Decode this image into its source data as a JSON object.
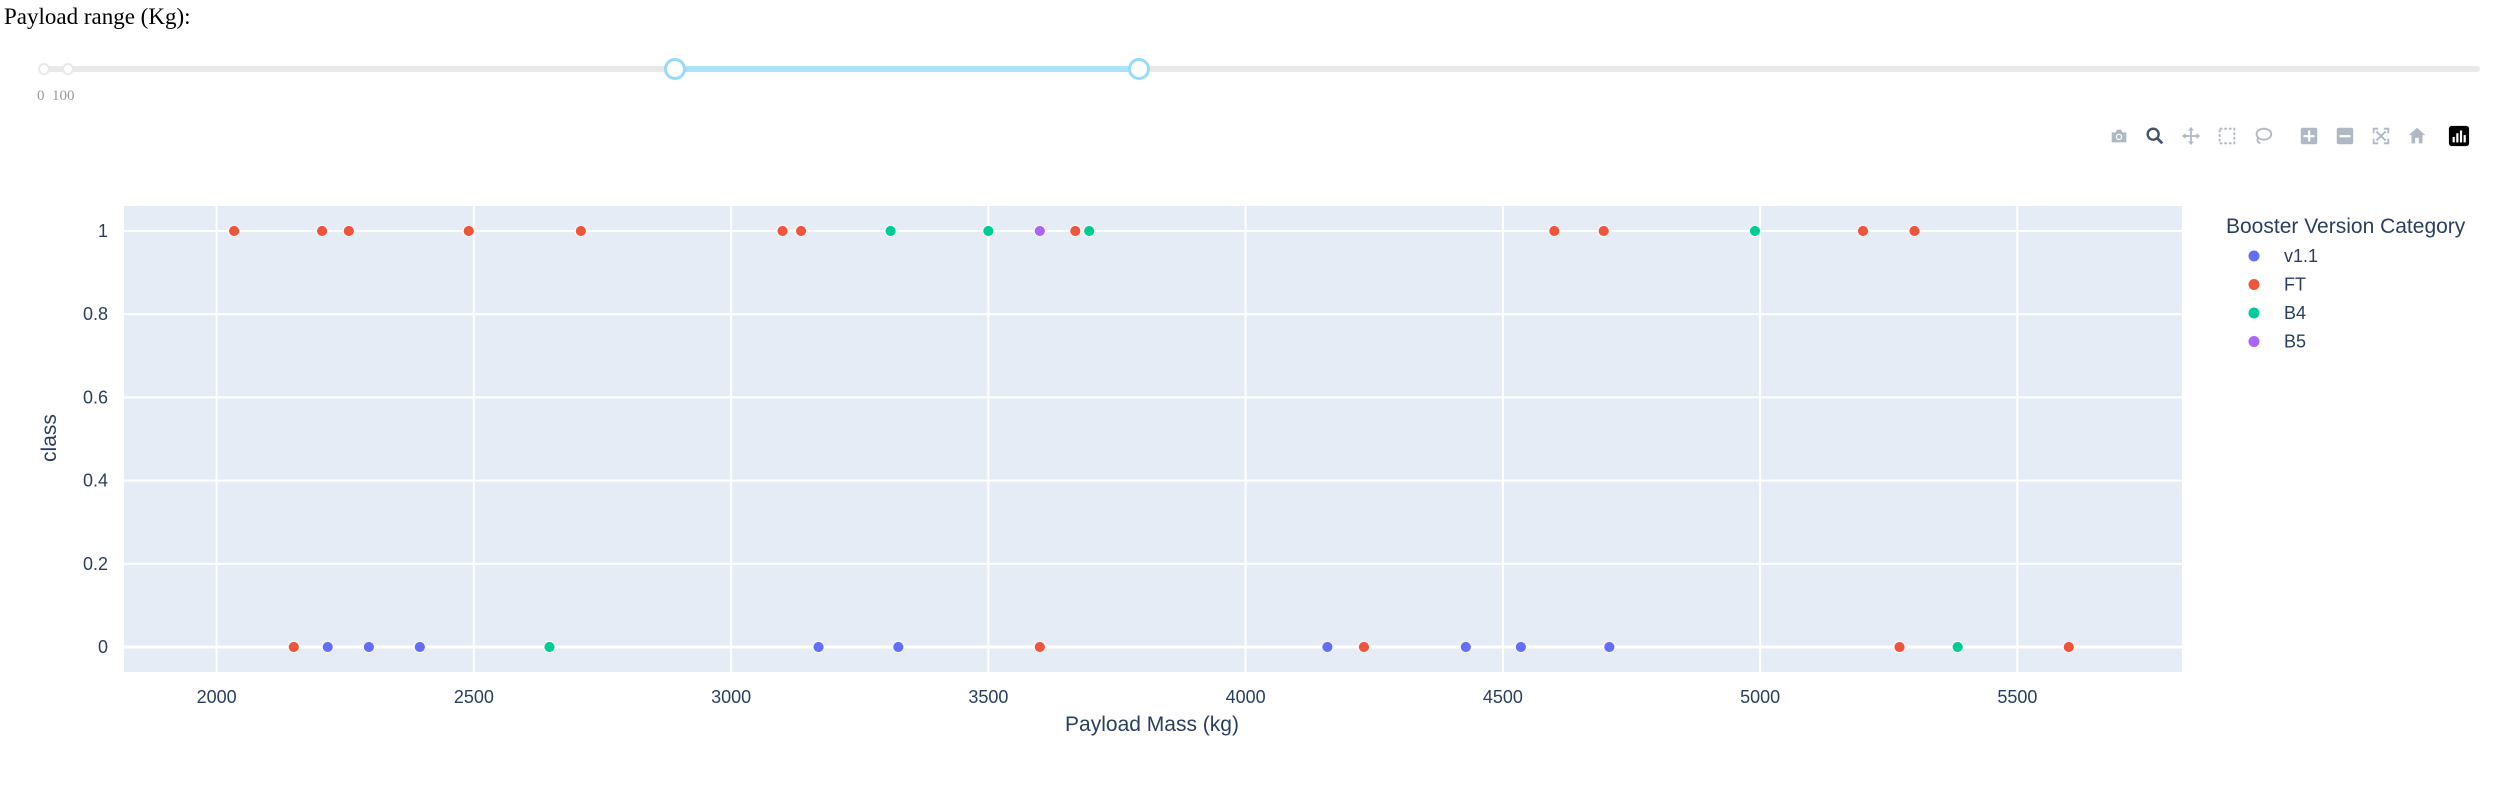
{
  "slider": {
    "label": "Payload range (Kg):",
    "min": 0,
    "max": 10000,
    "value": [
      2600,
      4500
    ],
    "marks": [
      "0",
      "100"
    ]
  },
  "modebar": [
    {
      "name": "camera-icon",
      "title": "Download plot as a png"
    },
    {
      "name": "zoom-icon",
      "title": "Zoom",
      "active": true
    },
    {
      "name": "pan-icon",
      "title": "Pan"
    },
    {
      "name": "box-select-icon",
      "title": "Box Select"
    },
    {
      "name": "lasso-select-icon",
      "title": "Lasso Select"
    },
    {
      "name": "zoom-in-icon",
      "title": "Zoom in"
    },
    {
      "name": "zoom-out-icon",
      "title": "Zoom out"
    },
    {
      "name": "autoscale-icon",
      "title": "Autoscale"
    },
    {
      "name": "reset-axes-icon",
      "title": "Reset axes"
    },
    {
      "name": "plotly-logo-icon",
      "title": "Produced with Plotly"
    }
  ],
  "chart_data": {
    "type": "scatter",
    "title": "",
    "xlabel": "Payload Mass (kg)",
    "ylabel": "class",
    "xlim": [
      1820,
      5820
    ],
    "ylim": [
      -0.06,
      1.06
    ],
    "x_ticks": [
      2000,
      2500,
      3000,
      3500,
      4000,
      4500,
      5000,
      5500
    ],
    "y_ticks": [
      0,
      0.2,
      0.4,
      0.6,
      0.8,
      1
    ],
    "y_tick_labels": [
      "0",
      "0.2",
      "0.4",
      "0.6",
      "0.8",
      "1"
    ],
    "grid": true,
    "plot_bgcolor": "#e5ecf6",
    "legend": {
      "title": "Booster Version Category",
      "position": "right"
    },
    "series": [
      {
        "name": "v1.1",
        "color": "#636efa",
        "points": [
          [
            2216,
            0
          ],
          [
            2296,
            0
          ],
          [
            2395,
            0
          ],
          [
            3170,
            0
          ],
          [
            3325,
            0
          ],
          [
            4159,
            0
          ],
          [
            4428,
            0
          ],
          [
            4535,
            0
          ],
          [
            4707,
            0
          ]
        ]
      },
      {
        "name": "FT",
        "color": "#ef553b",
        "points": [
          [
            2034,
            1
          ],
          [
            2205,
            1
          ],
          [
            2257,
            1
          ],
          [
            2490,
            1
          ],
          [
            2708,
            1
          ],
          [
            3100,
            1
          ],
          [
            3136,
            1
          ],
          [
            3669,
            1
          ],
          [
            4600,
            1
          ],
          [
            4696,
            1
          ],
          [
            5200,
            1
          ],
          [
            5300,
            1
          ],
          [
            2150,
            0
          ],
          [
            3600,
            0
          ],
          [
            4230,
            0
          ],
          [
            5271,
            0
          ],
          [
            5600,
            0
          ]
        ]
      },
      {
        "name": "B4",
        "color": "#00cc96",
        "points": [
          [
            3310,
            1
          ],
          [
            3500,
            1
          ],
          [
            3696,
            1
          ],
          [
            4990,
            1
          ],
          [
            2647,
            0
          ],
          [
            5384,
            0
          ]
        ]
      },
      {
        "name": "B5",
        "color": "#ab63fa",
        "points": [
          [
            3600,
            1
          ]
        ]
      }
    ]
  }
}
